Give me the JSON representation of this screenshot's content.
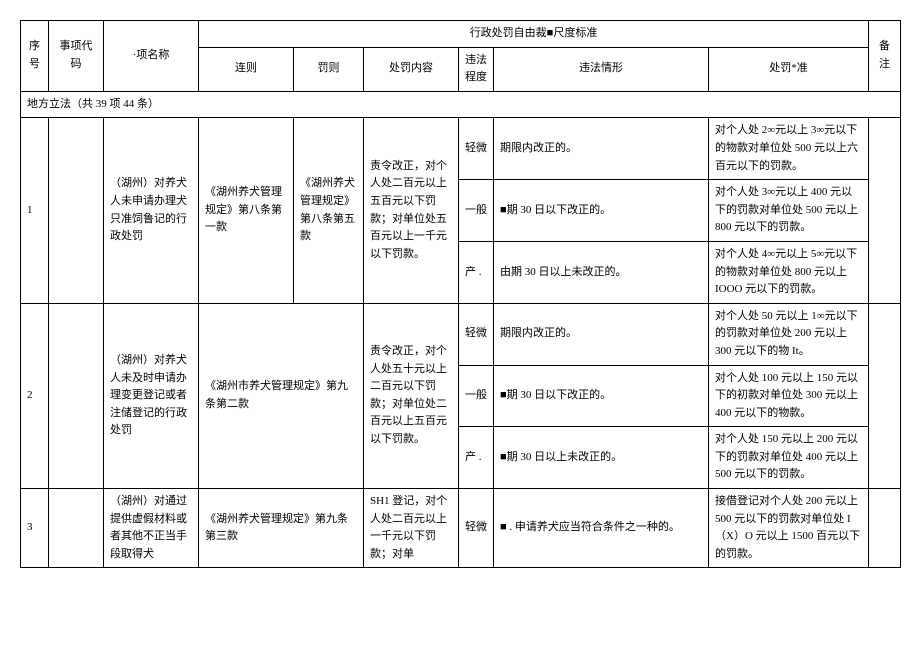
{
  "header": {
    "title": "行政处罚自由裁■尺度标准",
    "seq": "序号",
    "code": "事项代码",
    "name": "·项名称",
    "lian": "连则",
    "fa": "罚则",
    "content": "处罚内容",
    "degree": "违法程度",
    "circ": "违法情形",
    "std": "处罚*准",
    "note": "备注"
  },
  "section": "地方立法（共 39 项 44 条）",
  "r1": {
    "seq": "1",
    "name": "（湖州）对养犬人未申请办理犬只准饲鲁记的行政处罚",
    "lian": "《湖州养犬管理规定》第八条第一款",
    "fa": "《湖州养犬管理规定》第八条第五款",
    "cont": "责令改正，对个人处二百元以上五百元以下罚款；对单位处五百元以上一千元以下罚款。",
    "d1": "轻微",
    "c1": "期限内改正的。",
    "s1": "对个人处 2∞元以上 3∞元以下的物款对单位处 500 元以上六百元以下的罚款。",
    "d2": "一般",
    "c2": "■期 30 日以下改正的。",
    "s2": "对个人处 3∞元以上 400 元以下的罚款对单位处 500 元以上 800 元以下的罚款。",
    "d3": "产 .",
    "c3": "由期 30 日以上未改正的。",
    "s3": "对个人处 4∞元以上 5∞元以下的物款对单位处 800 元以上 IOOO 元以下的罚款。"
  },
  "r2": {
    "seq": "2",
    "name": "（湖州）对养犬人未及时申请办理变更登记或者注储登记的行政处罚",
    "lian": "《湖州市养犬管理规定》第九条第二款",
    "cont": "责令改正，对个人处五十元以上二百元以下罚款；对单位处二百元以上五百元以下罚款。",
    "d1": "轻微",
    "c1": "期限内改正的。",
    "s1": "对个人处 50 元以上 1∞元以下的罚款对单位处 200 元以上 300 元以下的物 It。",
    "d2": "一般",
    "c2": "■期 30 日以下改正的。",
    "s2": "对个人处 100 元以上 150 元以下的初款对单位处 300 元以上 400 元以下的物款。",
    "d3": "产 .",
    "c3": "■期 30 日以上未改正的。",
    "s3": "对个人处 150 元以上 200 元以下的罚款对单位处 400 元以上 500 元以下的罚款。"
  },
  "r3": {
    "seq": "3",
    "name": "（湖州）对通过提供虚假材料或者其他不正当手段取得犬",
    "lian": "《湖州养犬管理规定》第九条第三款",
    "cont": "SH1 登记，对个人处二百元以上一千元以下罚款；对单",
    "d1": "轻微",
    "c1": "■ . 申请养犬应当符合条件之一种的。",
    "s1": "接借登记对个人处 200 元以上 500 元以下的罚款对单位处 I（X）O 元以上 1500 百元以下的罚款。"
  }
}
